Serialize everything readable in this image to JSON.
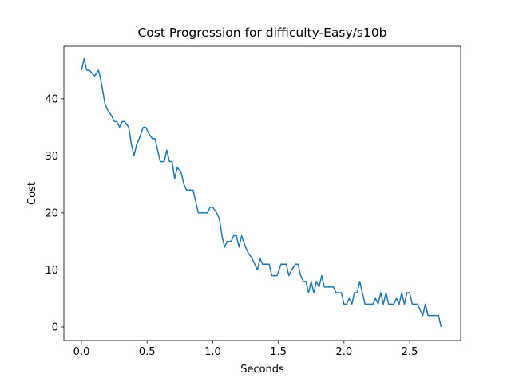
{
  "chart_data": {
    "type": "line",
    "title": "Cost Progression for difficulty-Easy/s10b",
    "xlabel": "Seconds",
    "ylabel": "Cost",
    "xlim": [
      -0.134,
      2.889
    ],
    "ylim": [
      -2.38,
      49.2
    ],
    "xticks": [
      {
        "value": 0,
        "label": "0.0"
      },
      0.5,
      {
        "value": 1,
        "label": "1.0"
      },
      1.5,
      {
        "value": 2,
        "label": "2.0"
      },
      2.5
    ],
    "yticks": [
      0,
      10,
      20,
      30,
      40
    ],
    "grid": false,
    "series": [
      {
        "name": "Cost",
        "color": "#1f77b4",
        "x": [
          0,
          0.02,
          0.04,
          0.06,
          0.08,
          0.1,
          0.13,
          0.15,
          0.18,
          0.2,
          0.23,
          0.25,
          0.27,
          0.29,
          0.31,
          0.33,
          0.36,
          0.38,
          0.4,
          0.42,
          0.44,
          0.47,
          0.49,
          0.51,
          0.54,
          0.56,
          0.58,
          0.6,
          0.63,
          0.65,
          0.67,
          0.69,
          0.71,
          0.73,
          0.76,
          0.78,
          0.8,
          0.83,
          0.85,
          0.87,
          0.89,
          0.92,
          0.94,
          0.96,
          0.98,
          1.0,
          1.03,
          1.05,
          1.07,
          1.09,
          1.11,
          1.14,
          1.16,
          1.18,
          1.2,
          1.22,
          1.25,
          1.27,
          1.3,
          1.32,
          1.34,
          1.36,
          1.38,
          1.41,
          1.43,
          1.45,
          1.47,
          1.49,
          1.52,
          1.54,
          1.56,
          1.58,
          1.6,
          1.63,
          1.65,
          1.67,
          1.69,
          1.71,
          1.73,
          1.75,
          1.77,
          1.79,
          1.81,
          1.83,
          1.85,
          1.87,
          1.9,
          1.92,
          1.94,
          1.96,
          1.98,
          2.0,
          2.02,
          2.04,
          2.06,
          2.08,
          2.1,
          2.12,
          2.14,
          2.16,
          2.18,
          2.2,
          2.22,
          2.24,
          2.26,
          2.28,
          2.3,
          2.32,
          2.34,
          2.36,
          2.38,
          2.4,
          2.42,
          2.44,
          2.46,
          2.48,
          2.5,
          2.52,
          2.54,
          2.56,
          2.58,
          2.6,
          2.62,
          2.64,
          2.66,
          2.68,
          2.7,
          2.72,
          2.74
        ],
        "values": [
          45,
          47,
          45,
          45,
          44.5,
          44,
          45,
          43,
          39,
          38,
          37,
          36,
          36,
          35,
          36,
          36,
          35,
          32,
          30,
          32,
          33,
          35,
          35,
          34,
          33,
          33,
          31,
          29,
          29,
          31,
          29,
          29,
          26,
          28,
          27,
          25,
          24,
          24,
          24,
          22,
          20,
          20,
          20,
          20,
          21,
          21,
          20,
          19,
          16,
          14,
          15,
          15,
          16,
          16,
          14,
          16,
          14,
          13,
          12,
          11,
          10,
          12,
          11,
          11,
          11,
          9,
          9,
          9,
          11,
          11,
          11,
          9,
          10,
          11,
          11,
          9,
          8,
          8,
          6,
          8,
          6,
          8,
          7,
          9,
          7,
          7,
          7,
          7,
          6,
          6,
          6,
          4,
          4,
          5,
          4,
          6,
          6,
          8,
          6,
          4,
          4,
          4,
          4,
          5,
          4,
          6,
          4,
          6,
          4,
          4,
          4,
          5,
          4,
          6,
          4,
          6,
          6,
          4,
          4,
          4,
          3,
          2,
          4,
          2,
          2,
          2,
          2,
          2,
          0
        ]
      }
    ]
  }
}
